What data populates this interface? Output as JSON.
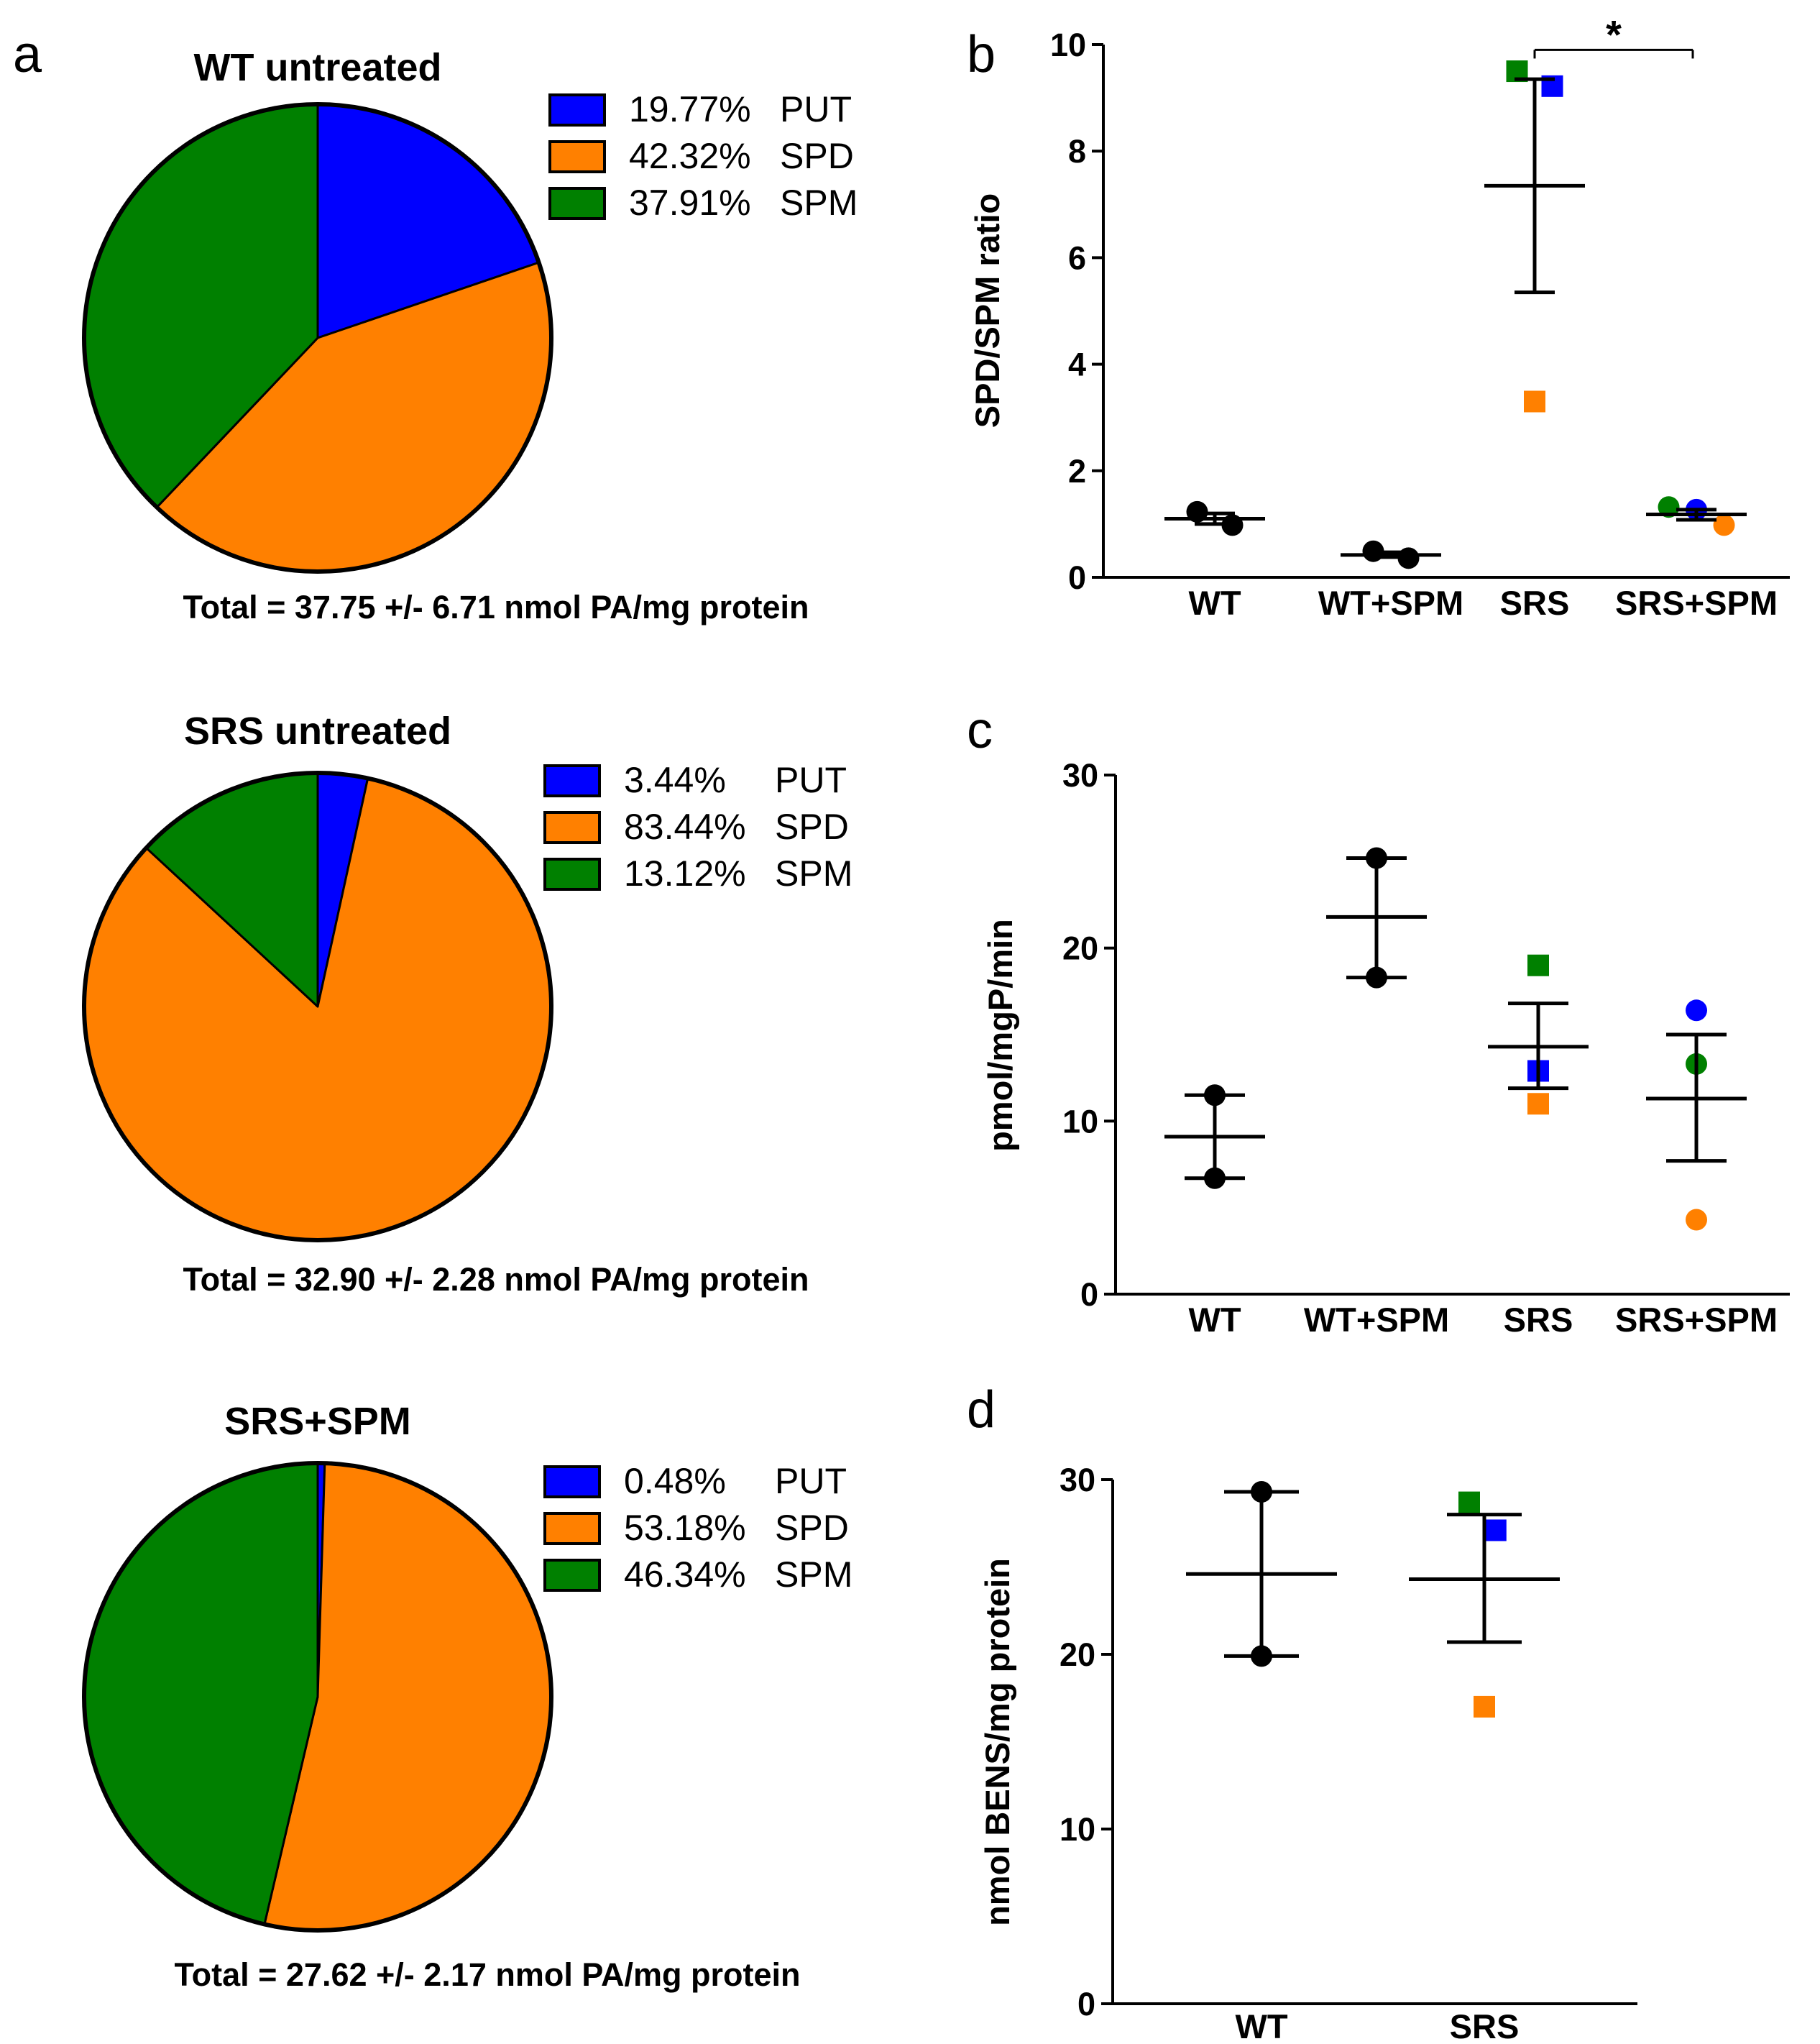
{
  "colors": {
    "PUT": "#0000ff",
    "SPD": "#ff8000",
    "SPM": "#008000",
    "WT": "#000000"
  },
  "chart_data": [
    {
      "type": "pie",
      "panel": "a",
      "title": "WT untreated",
      "slices": [
        {
          "label": "PUT",
          "value": 19.77,
          "pct_text": "19.77%",
          "color": "#0000ff"
        },
        {
          "label": "SPD",
          "value": 42.32,
          "pct_text": "42.32%",
          "color": "#ff8000"
        },
        {
          "label": "SPM",
          "value": 37.91,
          "pct_text": "37.91%",
          "color": "#008000"
        }
      ],
      "total_text": "Total = 37.75 +/- 6.71 nmol PA/mg protein"
    },
    {
      "type": "pie",
      "title": "SRS untreated",
      "slices": [
        {
          "label": "PUT",
          "value": 3.44,
          "pct_text": "3.44%",
          "color": "#0000ff"
        },
        {
          "label": "SPD",
          "value": 83.44,
          "pct_text": "83.44%",
          "color": "#ff8000"
        },
        {
          "label": "SPM",
          "value": 13.12,
          "pct_text": "13.12%",
          "color": "#008000"
        }
      ],
      "total_text": "Total = 32.90 +/- 2.28 nmol PA/mg protein"
    },
    {
      "type": "pie",
      "title": "SRS+SPM",
      "slices": [
        {
          "label": "PUT",
          "value": 0.48,
          "pct_text": "0.48%",
          "color": "#0000ff"
        },
        {
          "label": "SPD",
          "value": 53.18,
          "pct_text": "53.18%",
          "color": "#ff8000"
        },
        {
          "label": "SPM",
          "value": 46.34,
          "pct_text": "46.34%",
          "color": "#008000"
        }
      ],
      "total_text": "Total = 27.62 +/- 2.17 nmol PA/mg protein"
    },
    {
      "type": "scatter",
      "panel": "b",
      "ylabel": "SPD/SPM ratio",
      "ylim": [
        0,
        10
      ],
      "yticks": [
        "0",
        "2",
        "4",
        "6",
        "8",
        "10"
      ],
      "categories": [
        "WT",
        "WT+SPM",
        "SRS",
        "SRS+SPM"
      ],
      "groups": [
        {
          "mean": 1.1,
          "sem_low": 1.0,
          "sem_high": 1.2,
          "points": [
            {
              "y": 1.23,
              "color": "#000000",
              "shape": "circle",
              "offset": -0.35
            },
            {
              "y": 0.98,
              "color": "#000000",
              "shape": "circle",
              "offset": 0.35
            }
          ]
        },
        {
          "mean": 0.42,
          "sem_low": 0.38,
          "sem_high": 0.47,
          "points": [
            {
              "y": 0.49,
              "color": "#000000",
              "shape": "circle",
              "offset": -0.35
            },
            {
              "y": 0.36,
              "color": "#000000",
              "shape": "circle",
              "offset": 0.35
            }
          ]
        },
        {
          "mean": 7.35,
          "sem_low": 5.35,
          "sem_high": 9.35,
          "points": [
            {
              "y": 9.5,
              "color": "#008000",
              "shape": "square",
              "offset": -0.35
            },
            {
              "y": 9.22,
              "color": "#0000ff",
              "shape": "square",
              "offset": 0.35
            },
            {
              "y": 3.3,
              "color": "#ff8000",
              "shape": "square",
              "offset": 0
            }
          ]
        },
        {
          "mean": 1.18,
          "sem_low": 1.08,
          "sem_high": 1.27,
          "points": [
            {
              "y": 1.32,
              "color": "#008000",
              "shape": "circle",
              "offset": -0.55
            },
            {
              "y": 1.27,
              "color": "#0000ff",
              "shape": "circle",
              "offset": 0
            },
            {
              "y": 0.98,
              "color": "#ff8000",
              "shape": "circle",
              "offset": 0.55
            }
          ]
        }
      ],
      "significance": {
        "from": 2,
        "to": 3,
        "y": 9.9,
        "label": "*"
      }
    },
    {
      "type": "scatter",
      "panel": "c",
      "ylabel": "pmol/mgP/min",
      "ylim": [
        0,
        30
      ],
      "yticks": [
        "0",
        "10",
        "20",
        "30"
      ],
      "categories": [
        "WT",
        "WT+SPM",
        "SRS",
        "SRS+SPM"
      ],
      "groups": [
        {
          "mean": 9.1,
          "sem_low": 6.7,
          "sem_high": 11.5,
          "points": [
            {
              "y": 11.5,
              "color": "#000000",
              "shape": "circle",
              "offset": 0
            },
            {
              "y": 6.7,
              "color": "#000000",
              "shape": "circle",
              "offset": 0
            }
          ]
        },
        {
          "mean": 21.8,
          "sem_low": 18.3,
          "sem_high": 25.2,
          "points": [
            {
              "y": 25.2,
              "color": "#000000",
              "shape": "circle",
              "offset": 0
            },
            {
              "y": 18.3,
              "color": "#000000",
              "shape": "circle",
              "offset": 0
            }
          ]
        },
        {
          "mean": 14.3,
          "sem_low": 11.9,
          "sem_high": 16.8,
          "points": [
            {
              "y": 19.0,
              "color": "#008000",
              "shape": "square",
              "offset": 0
            },
            {
              "y": 12.9,
              "color": "#0000ff",
              "shape": "square",
              "offset": 0
            },
            {
              "y": 11.0,
              "color": "#ff8000",
              "shape": "square",
              "offset": 0
            }
          ]
        },
        {
          "mean": 11.3,
          "sem_low": 7.7,
          "sem_high": 15.0,
          "points": [
            {
              "y": 16.4,
              "color": "#0000ff",
              "shape": "circle",
              "offset": 0
            },
            {
              "y": 13.3,
              "color": "#008000",
              "shape": "circle",
              "offset": 0
            },
            {
              "y": 4.3,
              "color": "#ff8000",
              "shape": "circle",
              "offset": 0
            }
          ]
        }
      ]
    },
    {
      "type": "scatter",
      "panel": "d",
      "ylabel": "nmol BENS/mg protein",
      "ylim": [
        0,
        30
      ],
      "yticks": [
        "0",
        "10",
        "20",
        "30"
      ],
      "categories": [
        "WT",
        "SRS"
      ],
      "groups": [
        {
          "mean": 24.6,
          "sem_low": 19.9,
          "sem_high": 29.3,
          "points": [
            {
              "y": 29.3,
              "color": "#000000",
              "shape": "circle",
              "offset": 0
            },
            {
              "y": 19.9,
              "color": "#000000",
              "shape": "circle",
              "offset": 0
            }
          ]
        },
        {
          "mean": 24.3,
          "sem_low": 20.7,
          "sem_high": 28.0,
          "points": [
            {
              "y": 28.7,
              "color": "#008000",
              "shape": "square",
              "offset": -0.2
            },
            {
              "y": 27.1,
              "color": "#0000ff",
              "shape": "square",
              "offset": 0.15
            },
            {
              "y": 17.0,
              "color": "#ff8000",
              "shape": "square",
              "offset": 0
            }
          ]
        }
      ]
    }
  ]
}
